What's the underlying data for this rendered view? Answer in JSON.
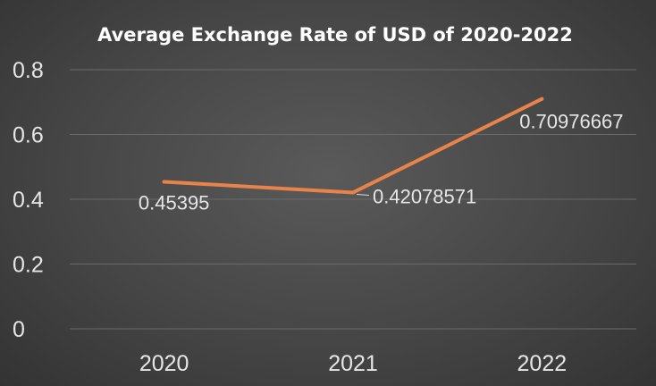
{
  "chart_data": {
    "type": "line",
    "title": "Average Exchange Rate of USD of 2020-2022",
    "xlabel": "",
    "ylabel": "",
    "categories": [
      "2020",
      "2021",
      "2022"
    ],
    "series": [
      {
        "values": [
          0.45395,
          0.42078571,
          0.70976667
        ],
        "data_labels": [
          "0.45395",
          "0.42078571",
          "0.70976667"
        ],
        "color": "#e8834a"
      }
    ],
    "ylim": [
      0,
      0.8
    ],
    "y_ticks": [
      0,
      0.2,
      0.4,
      0.6,
      0.8
    ],
    "y_tick_labels": [
      "0",
      "0.2",
      "0.4",
      "0.6",
      "0.8"
    ],
    "grid": true,
    "legend": "none"
  },
  "colors": {
    "background": "#464646",
    "grid": "#6a6a6a",
    "text": "#e6e6e6",
    "title": "#ffffff"
  }
}
